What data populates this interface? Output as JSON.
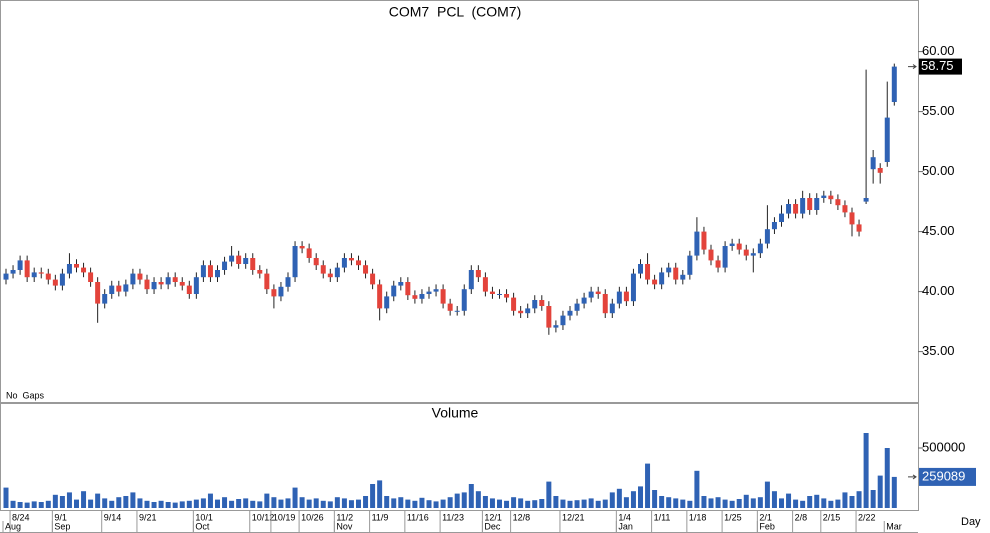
{
  "chart_data": [
    {
      "type": "candlestick",
      "title": "COM7  PCL  (COM7)",
      "annotation": "No  Gaps",
      "up_color": "#2f62b4",
      "down_color": "#e3433b",
      "ylim": [
        30.8,
        64.3
      ],
      "yticks": [
        {
          "value": 35,
          "label": "35.00"
        },
        {
          "value": 40,
          "label": "40.00"
        },
        {
          "value": 45,
          "label": "45.00"
        },
        {
          "value": 50,
          "label": "50.00"
        },
        {
          "value": 55,
          "label": "55.00"
        },
        {
          "value": 60,
          "label": "60.00"
        }
      ],
      "open": [
        41.0,
        41.5,
        41.8,
        42.6,
        41.2,
        41.6,
        41.5,
        41.0,
        40.5,
        41.5,
        42.3,
        42.0,
        41.6,
        40.8,
        39.0,
        39.8,
        40.5,
        40.0,
        40.6,
        41.5,
        41.0,
        40.2,
        40.8,
        40.6,
        41.2,
        40.8,
        40.5,
        39.8,
        41.2,
        42.2,
        41.2,
        41.8,
        42.5,
        43.0,
        42.3,
        42.8,
        41.8,
        41.5,
        40.2,
        39.6,
        40.4,
        41.2,
        43.8,
        43.6,
        42.8,
        42.2,
        41.5,
        41.2,
        42.0,
        42.8,
        42.6,
        42.2,
        41.5,
        40.6,
        38.6,
        39.6,
        40.5,
        40.8,
        39.7,
        39.4,
        39.8,
        40.0,
        40.2,
        39.0,
        38.4,
        38.4,
        40.2,
        41.8,
        41.2,
        40.0,
        39.8,
        39.8,
        39.5,
        38.4,
        38.2,
        38.6,
        39.3,
        38.8,
        37.0,
        37.2,
        38.0,
        38.4,
        39.0,
        39.5,
        40.0,
        39.8,
        38.2,
        39.0,
        40.0,
        39.2,
        41.5,
        42.3,
        41.0,
        40.6,
        41.6,
        42.0,
        41.0,
        41.4,
        43.0,
        45.0,
        43.5,
        42.6,
        42.0,
        43.8,
        44.0,
        43.5,
        43.0,
        43.2,
        44.0,
        45.2,
        45.8,
        46.5,
        47.3,
        46.5,
        47.8,
        46.8,
        47.8,
        48.0,
        47.7,
        47.2,
        46.6,
        45.6,
        47.5,
        50.2,
        50.3,
        50.8,
        55.8
      ],
      "high": [
        41.9,
        42.2,
        43.0,
        43.0,
        42.0,
        42.0,
        41.9,
        41.4,
        41.9,
        43.2,
        42.7,
        42.4,
        42.0,
        41.2,
        40.2,
        40.9,
        40.9,
        41.0,
        41.9,
        41.9,
        41.4,
        41.2,
        41.2,
        41.6,
        41.6,
        41.2,
        40.9,
        41.6,
        42.6,
        42.6,
        42.2,
        42.9,
        43.8,
        43.4,
        43.2,
        43.2,
        42.2,
        41.9,
        40.6,
        40.8,
        41.6,
        44.2,
        44.2,
        44.0,
        43.2,
        42.6,
        41.9,
        42.4,
        43.2,
        43.2,
        43.0,
        42.6,
        41.9,
        41.0,
        40.0,
        40.9,
        41.2,
        41.2,
        40.1,
        40.2,
        40.4,
        40.6,
        40.6,
        39.4,
        38.8,
        40.6,
        42.2,
        42.2,
        41.6,
        40.4,
        40.2,
        40.2,
        39.9,
        38.8,
        39.0,
        39.7,
        39.7,
        39.2,
        37.6,
        38.4,
        38.8,
        39.4,
        39.9,
        40.4,
        40.4,
        40.2,
        39.4,
        40.4,
        40.4,
        41.9,
        42.7,
        43.2,
        41.4,
        42.0,
        42.4,
        42.4,
        41.8,
        43.4,
        46.2,
        45.4,
        43.9,
        43.0,
        44.2,
        44.4,
        44.4,
        43.9,
        43.6,
        44.4,
        47.2,
        46.2,
        47.2,
        47.7,
        47.7,
        48.4,
        48.2,
        48.2,
        48.4,
        48.4,
        48.1,
        47.6,
        47.0,
        46.0,
        58.5,
        51.8,
        50.7,
        57.5,
        59.0
      ],
      "low": [
        40.6,
        41.1,
        41.4,
        40.8,
        40.8,
        41.1,
        40.6,
        40.1,
        40.1,
        41.1,
        41.6,
        41.2,
        40.4,
        37.4,
        38.6,
        39.4,
        39.6,
        39.6,
        40.2,
        40.6,
        39.8,
        39.8,
        40.2,
        40.2,
        40.4,
        40.1,
        39.4,
        39.4,
        40.8,
        40.8,
        40.8,
        41.4,
        42.1,
        41.9,
        41.9,
        41.4,
        41.1,
        39.8,
        38.6,
        39.2,
        40.0,
        40.8,
        43.2,
        42.4,
        41.8,
        41.1,
        40.8,
        40.8,
        41.6,
        42.2,
        41.8,
        41.1,
        40.2,
        37.6,
        38.2,
        39.2,
        40.1,
        39.3,
        39.0,
        39.0,
        39.4,
        39.6,
        38.6,
        38.0,
        38.0,
        38.0,
        39.8,
        40.8,
        39.6,
        39.4,
        39.4,
        39.1,
        38.0,
        37.8,
        37.8,
        38.2,
        38.4,
        36.4,
        36.6,
        36.8,
        37.6,
        38.0,
        38.6,
        39.1,
        39.4,
        37.8,
        37.8,
        38.6,
        38.8,
        38.8,
        41.1,
        40.6,
        40.2,
        40.2,
        41.2,
        40.6,
        40.6,
        41.0,
        42.6,
        43.1,
        42.2,
        41.6,
        41.6,
        43.4,
        43.1,
        42.6,
        41.6,
        42.8,
        43.6,
        44.8,
        45.4,
        46.1,
        46.1,
        46.1,
        46.4,
        46.4,
        47.4,
        47.3,
        46.8,
        46.2,
        44.6,
        44.6,
        47.3,
        49.0,
        49.0,
        50.4,
        55.5
      ],
      "close": [
        41.5,
        41.8,
        42.6,
        41.2,
        41.6,
        41.5,
        41.0,
        40.5,
        41.5,
        42.3,
        42.0,
        41.6,
        40.8,
        39.0,
        39.8,
        40.5,
        40.0,
        40.6,
        41.5,
        41.0,
        40.2,
        40.8,
        40.6,
        41.2,
        40.8,
        40.5,
        39.8,
        41.2,
        42.2,
        41.2,
        41.8,
        42.5,
        43.0,
        42.3,
        42.8,
        41.8,
        41.5,
        40.2,
        39.6,
        40.4,
        41.2,
        43.8,
        43.6,
        42.8,
        42.2,
        41.5,
        41.2,
        42.0,
        42.8,
        42.6,
        42.2,
        41.5,
        40.6,
        38.6,
        39.6,
        40.5,
        40.8,
        39.7,
        39.4,
        39.8,
        40.0,
        40.2,
        39.0,
        38.4,
        38.4,
        40.2,
        41.8,
        41.2,
        40.0,
        39.8,
        39.8,
        39.5,
        38.4,
        38.2,
        38.6,
        39.3,
        38.8,
        37.0,
        37.2,
        38.0,
        38.4,
        39.0,
        39.5,
        40.0,
        39.8,
        38.2,
        39.0,
        40.0,
        39.2,
        41.5,
        42.3,
        41.0,
        40.6,
        41.6,
        42.0,
        41.0,
        41.4,
        43.0,
        45.0,
        43.5,
        42.6,
        42.0,
        43.8,
        44.0,
        43.5,
        43.0,
        43.2,
        44.0,
        45.2,
        45.8,
        46.5,
        47.3,
        46.5,
        47.8,
        46.8,
        47.8,
        48.0,
        47.7,
        47.2,
        46.6,
        45.6,
        45.0,
        47.8,
        51.2,
        49.9,
        54.5,
        58.75
      ]
    },
    {
      "type": "bar",
      "title": "Volume",
      "color": "#2f62b4",
      "x_label": "Day",
      "ylim": [
        0,
        875000
      ],
      "yticks": [
        500000
      ],
      "categories": [
        null,
        "8/24",
        null,
        null,
        null,
        null,
        null,
        "9/1",
        null,
        null,
        null,
        null,
        null,
        null,
        "9/14",
        null,
        null,
        null,
        null,
        "9/21",
        null,
        null,
        null,
        null,
        null,
        null,
        null,
        "10/1",
        null,
        null,
        null,
        null,
        null,
        null,
        null,
        "10/12",
        null,
        null,
        "10/19",
        null,
        null,
        null,
        "10/26",
        null,
        null,
        null,
        null,
        "11/2",
        null,
        null,
        null,
        null,
        "11/9",
        null,
        null,
        null,
        null,
        "11/16",
        null,
        null,
        null,
        null,
        "11/23",
        null,
        null,
        null,
        null,
        null,
        "12/1",
        null,
        null,
        null,
        "12/8",
        null,
        null,
        null,
        null,
        null,
        null,
        "12/21",
        null,
        null,
        null,
        null,
        null,
        null,
        null,
        "1/4",
        null,
        null,
        null,
        null,
        "1/11",
        null,
        null,
        null,
        null,
        "1/18",
        null,
        null,
        null,
        null,
        "1/25",
        null,
        null,
        null,
        null,
        "2/1",
        null,
        null,
        null,
        null,
        "2/8",
        null,
        null,
        null,
        "2/15",
        null,
        null,
        null,
        null,
        "2/22",
        null,
        null,
        null,
        null,
        null
      ],
      "month_labels": [
        "Aug",
        null,
        null,
        null,
        null,
        null,
        null,
        "Sep",
        null,
        null,
        null,
        null,
        null,
        null,
        null,
        null,
        null,
        null,
        null,
        null,
        null,
        null,
        null,
        null,
        null,
        null,
        null,
        "Oct",
        null,
        null,
        null,
        null,
        null,
        null,
        null,
        null,
        null,
        null,
        null,
        null,
        null,
        null,
        null,
        null,
        null,
        null,
        null,
        "Nov",
        null,
        null,
        null,
        null,
        null,
        null,
        null,
        null,
        null,
        null,
        null,
        null,
        null,
        null,
        null,
        null,
        null,
        null,
        null,
        null,
        "Dec",
        null,
        null,
        null,
        null,
        null,
        null,
        null,
        null,
        null,
        null,
        null,
        null,
        null,
        null,
        null,
        null,
        null,
        null,
        "Jan",
        null,
        null,
        null,
        null,
        null,
        null,
        null,
        null,
        null,
        null,
        null,
        null,
        null,
        null,
        null,
        null,
        null,
        null,
        null,
        "Feb",
        null,
        null,
        null,
        null,
        null,
        null,
        null,
        null,
        null,
        null,
        null,
        null,
        null,
        null,
        null,
        null,
        null,
        "Mar",
        null
      ],
      "values": [
        170000,
        60000,
        50000,
        45000,
        55000,
        50000,
        60000,
        110000,
        100000,
        130000,
        70000,
        140000,
        70000,
        120000,
        80000,
        60000,
        90000,
        100000,
        130000,
        80000,
        60000,
        50000,
        60000,
        50000,
        45000,
        55000,
        60000,
        70000,
        80000,
        120000,
        70000,
        90000,
        60000,
        75000,
        80000,
        60000,
        55000,
        120000,
        90000,
        70000,
        80000,
        170000,
        90000,
        70000,
        80000,
        60000,
        55000,
        90000,
        80000,
        65000,
        70000,
        100000,
        200000,
        230000,
        100000,
        80000,
        90000,
        70000,
        60000,
        85000,
        65000,
        55000,
        70000,
        90000,
        120000,
        130000,
        200000,
        140000,
        100000,
        80000,
        70000,
        60000,
        90000,
        80000,
        60000,
        65000,
        75000,
        220000,
        100000,
        70000,
        60000,
        65000,
        70000,
        80000,
        60000,
        70000,
        130000,
        160000,
        90000,
        140000,
        180000,
        370000,
        150000,
        100000,
        90000,
        80000,
        70000,
        60000,
        310000,
        100000,
        80000,
        90000,
        70000,
        60000,
        75000,
        110000,
        80000,
        90000,
        220000,
        140000,
        80000,
        120000,
        70000,
        60000,
        100000,
        110000,
        80000,
        60000,
        70000,
        130000,
        100000,
        140000,
        625000,
        150000,
        270000,
        500000,
        259089
      ]
    }
  ]
}
